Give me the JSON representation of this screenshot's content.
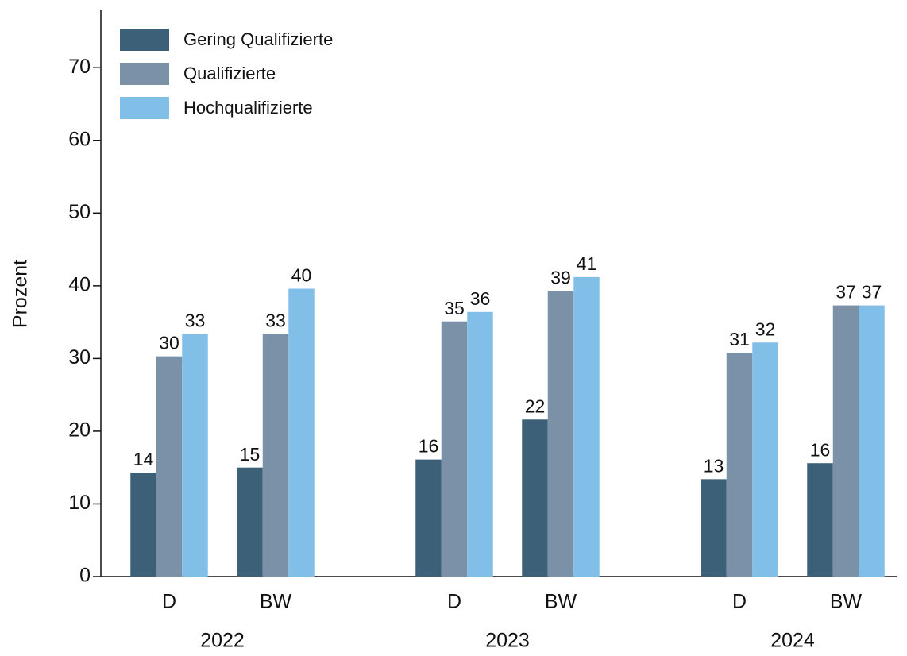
{
  "chart_data": {
    "type": "bar",
    "y_label": "Prozent",
    "groups": [
      "2022",
      "2023",
      "2024"
    ],
    "categories": [
      "D",
      "BW",
      "D",
      "BW",
      "D",
      "BW"
    ],
    "series": [
      {
        "name": "Gering Qualifizierte",
        "color": "#3d6079",
        "values": [
          14.3,
          15.0,
          16.1,
          21.6,
          13.4,
          15.6
        ],
        "value_labels": [
          "14",
          "15",
          "16",
          "22",
          "13",
          "16"
        ]
      },
      {
        "name": "Qualifizierte",
        "color": "#7b91a8",
        "values": [
          30.3,
          33.4,
          35.1,
          39.3,
          30.8,
          37.3
        ],
        "value_labels": [
          "30",
          "33",
          "35",
          "39",
          "31",
          "37"
        ]
      },
      {
        "name": "Hochqualifizierte",
        "color": "#82bfe8",
        "values": [
          33.4,
          39.6,
          36.4,
          41.2,
          32.2,
          37.3
        ],
        "value_labels": [
          "33",
          "40",
          "36",
          "41",
          "32",
          "37"
        ]
      }
    ],
    "ylim": [
      0,
      78
    ],
    "yticks": [
      0,
      10,
      20,
      30,
      40,
      50,
      60,
      70
    ],
    "legend": "upper-left"
  }
}
